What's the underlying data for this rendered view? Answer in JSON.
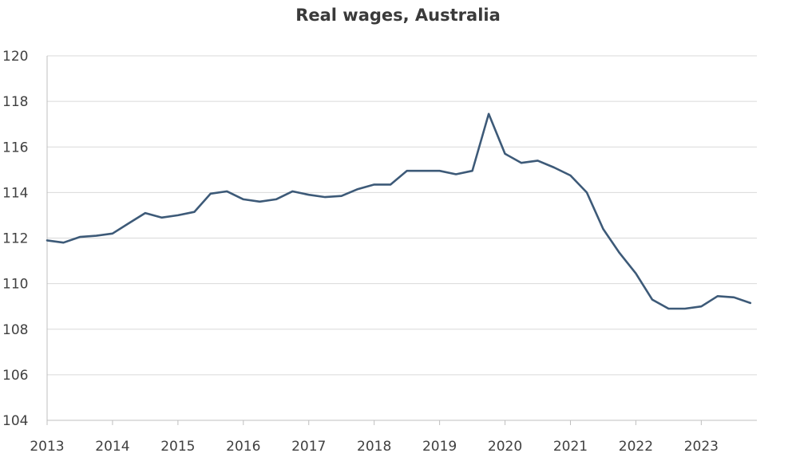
{
  "chart_data": {
    "type": "line",
    "title": "Real wages, Australia",
    "xlabel": "",
    "ylabel": "",
    "ylim": [
      104,
      120
    ],
    "yticks": [
      104,
      106,
      108,
      110,
      112,
      114,
      116,
      118,
      120
    ],
    "xlim": [
      2013,
      2023.85
    ],
    "xticks": [
      2013,
      2014,
      2015,
      2016,
      2017,
      2018,
      2019,
      2020,
      2021,
      2022,
      2023
    ],
    "xtick_labels": [
      "2013",
      "2014",
      "2015",
      "2016",
      "2017",
      "2018",
      "2019",
      "2020",
      "2021",
      "2022",
      "2023"
    ],
    "grid": "horizontal",
    "line_color": "#3d5a78",
    "series": [
      {
        "x": [
          2013.0,
          2013.25,
          2013.5,
          2013.75,
          2014.0,
          2014.25,
          2014.5,
          2014.75,
          2015.0,
          2015.25,
          2015.5,
          2015.75,
          2016.0,
          2016.25,
          2016.5,
          2016.75,
          2017.0,
          2017.25,
          2017.5,
          2017.75,
          2018.0,
          2018.25,
          2018.5,
          2018.75,
          2019.0,
          2019.25,
          2019.5,
          2019.75,
          2020.0,
          2020.25,
          2020.5,
          2020.75,
          2021.0,
          2021.25,
          2021.5,
          2021.75,
          2022.0,
          2022.25,
          2022.5,
          2022.75,
          2023.0,
          2023.25,
          2023.5,
          2023.75
        ],
        "values": [
          111.9,
          111.8,
          112.05,
          112.1,
          112.2,
          112.65,
          113.1,
          112.9,
          113.0,
          113.15,
          113.95,
          114.05,
          113.7,
          113.6,
          113.7,
          114.05,
          113.9,
          113.8,
          113.85,
          114.15,
          114.35,
          114.35,
          114.95,
          114.95,
          114.95,
          114.8,
          114.95,
          117.45,
          115.7,
          115.3,
          115.4,
          115.1,
          114.75,
          114.0,
          112.4,
          111.35,
          110.45,
          109.3,
          108.9,
          108.9,
          109.0,
          109.45,
          109.4,
          109.15
        ]
      }
    ]
  }
}
